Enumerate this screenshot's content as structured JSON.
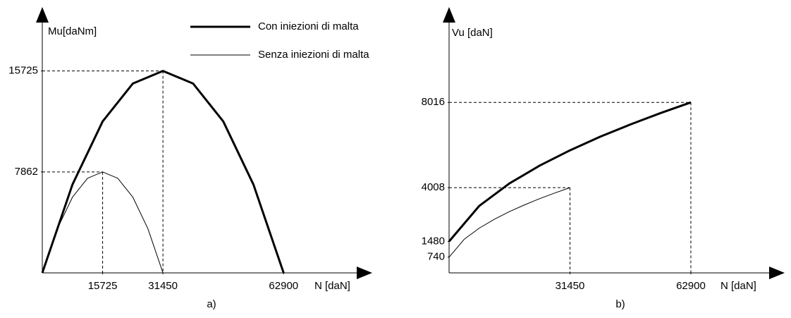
{
  "chart_data": [
    {
      "type": "line",
      "caption": "a)",
      "x_label": "N [daN]",
      "y_label": "Mu[daNm]",
      "xlim": [
        0,
        86000
      ],
      "ylim": [
        0,
        20700
      ],
      "xticks": [
        15725,
        31450,
        62900
      ],
      "yticks": [
        7862,
        15725
      ],
      "legend": "top-right",
      "series": [
        {
          "name": "Con iniezioni di malta",
          "color": "#000000",
          "width": 3,
          "x": [
            0,
            7862.5,
            15725,
            23587.5,
            31450,
            39312.5,
            47175,
            55037.5,
            62900
          ],
          "values": [
            0,
            6880,
            11794,
            14742,
            15725,
            14742,
            11794,
            6880,
            0
          ]
        },
        {
          "name": "Senza iniezioni di malta",
          "color": "#000000",
          "width": 1,
          "x": [
            0,
            3931,
            7862,
            11794,
            15725,
            19656,
            23588,
            27519,
            31450
          ],
          "values": [
            0,
            3440,
            5897,
            7371,
            7862,
            7371,
            5897,
            3440,
            0
          ]
        }
      ]
    },
    {
      "type": "line",
      "caption": "b)",
      "x_label": "N [daN]",
      "y_label": "Vu [daN]",
      "xlim": [
        0,
        87300
      ],
      "ylim": [
        0,
        12500
      ],
      "xticks": [
        31450,
        62900
      ],
      "yticks": [
        740,
        1480,
        4008,
        8016
      ],
      "series": [
        {
          "color": "#000000",
          "width": 3,
          "x": [
            0,
            7862.5,
            15725,
            23587.5,
            31450,
            39312.5,
            47175,
            55037.5,
            62900
          ],
          "values": [
            1480,
            3154,
            4208,
            5046,
            5764,
            6402,
            6981,
            7516,
            8016
          ]
        },
        {
          "color": "#000000",
          "width": 1,
          "x": [
            0,
            3931,
            7862,
            11794,
            15725,
            19656,
            23588,
            27519,
            31450
          ],
          "values": [
            740,
            1577,
            2104,
            2523,
            2882,
            3201,
            3491,
            3758,
            4008
          ]
        }
      ]
    }
  ]
}
